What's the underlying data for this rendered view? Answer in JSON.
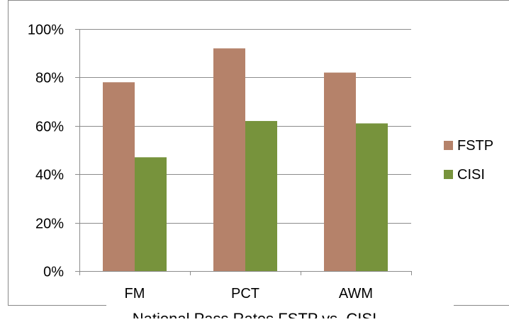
{
  "chart_data": {
    "type": "bar",
    "title": "National Pass Rates FSTP vs. CISI",
    "categories": [
      "FM",
      "PCT",
      "AWM"
    ],
    "series": [
      {
        "name": "FSTP",
        "color": "#b5826a",
        "values": [
          78,
          92,
          82
        ]
      },
      {
        "name": "CISI",
        "color": "#77933c",
        "values": [
          47,
          62,
          61
        ]
      }
    ],
    "ylim": [
      0,
      100
    ],
    "yticks": [
      "0%",
      "20%",
      "40%",
      "60%",
      "80%",
      "100%"
    ],
    "xlabel": "",
    "ylabel": "",
    "grid": true,
    "legend": "right"
  }
}
